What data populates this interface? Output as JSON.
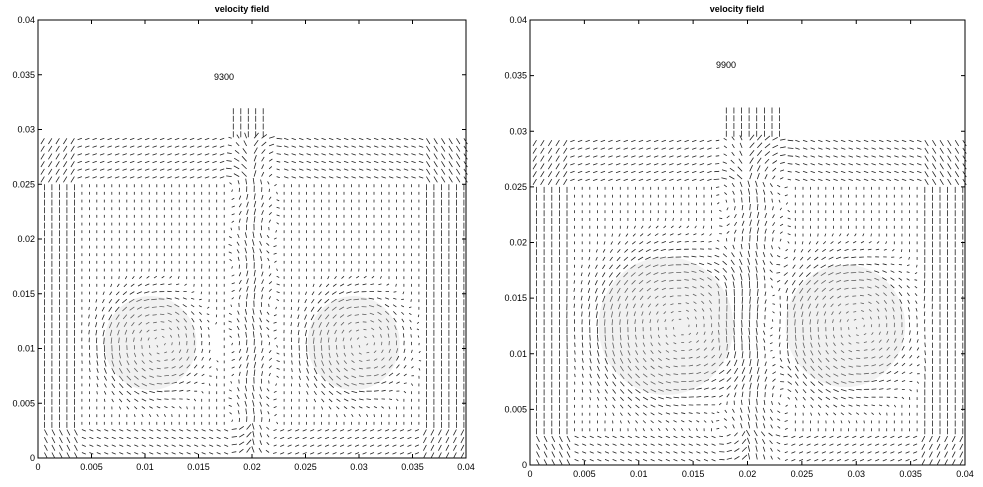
{
  "chart_data": [
    {
      "type": "quiver",
      "title": "velocity field",
      "annotation": "9300",
      "xlim": [
        0,
        0.04
      ],
      "ylim": [
        0,
        0.04
      ],
      "xticks": [
        "0",
        "0.005",
        "0.01",
        "0.015",
        "0.02",
        "0.025",
        "0.03",
        "0.035",
        "0.04"
      ],
      "yticks": [
        "0",
        "0.005",
        "0.01",
        "0.015",
        "0.02",
        "0.025",
        "0.03",
        "0.035",
        "0.04"
      ],
      "fluid_top": 0.0293,
      "vortices": [
        {
          "x": 0.0105,
          "y": 0.0105,
          "r": 0.0043
        },
        {
          "x": 0.0295,
          "y": 0.0105,
          "r": 0.0043
        }
      ],
      "plume": {
        "x": 0.02,
        "top": 0.0315,
        "width": 0.0025
      }
    },
    {
      "type": "quiver",
      "title": "velocity field",
      "annotation": "9900",
      "xlim": [
        0,
        0.04
      ],
      "ylim": [
        0,
        0.04
      ],
      "xticks": [
        "0",
        "0.005",
        "0.01",
        "0.015",
        "0.02",
        "0.025",
        "0.03",
        "0.035",
        "0.04"
      ],
      "yticks": [
        "0",
        "0.005",
        "0.01",
        "0.015",
        "0.02",
        "0.025",
        "0.03",
        "0.035",
        "0.04"
      ],
      "fluid_top": 0.0295,
      "vortices": [
        {
          "x": 0.0125,
          "y": 0.0125,
          "r": 0.0062
        },
        {
          "x": 0.029,
          "y": 0.0125,
          "r": 0.0055
        }
      ],
      "plume": {
        "x": 0.0205,
        "top": 0.0322,
        "width": 0.0035
      }
    }
  ]
}
